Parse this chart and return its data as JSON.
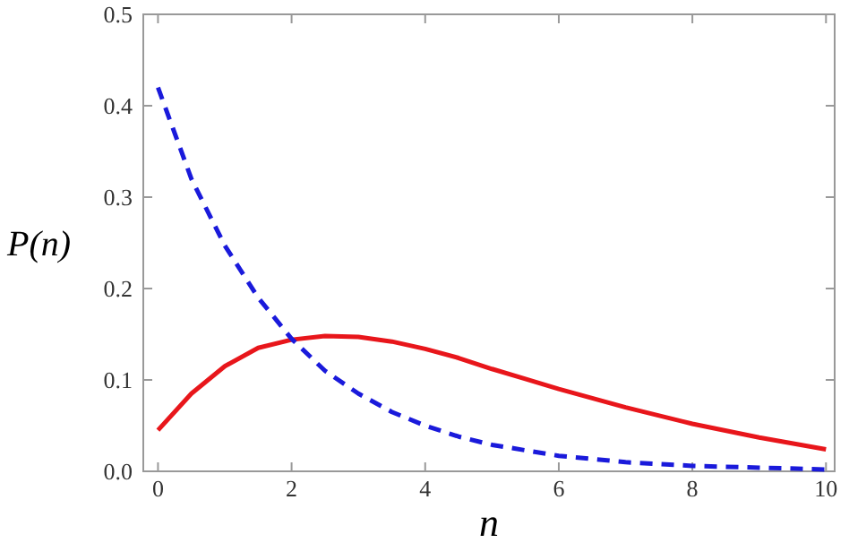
{
  "chart_data": {
    "type": "line",
    "xlabel": "n",
    "ylabel": "P(n)",
    "xlim": [
      -0.22,
      10.13
    ],
    "ylim": [
      0,
      0.5
    ],
    "xticks": [
      0,
      2,
      4,
      6,
      8,
      10
    ],
    "yticks": [
      {
        "value": 0,
        "label": "0.0"
      },
      0.1,
      0.2,
      0.3,
      0.4,
      0.5
    ],
    "grid": false,
    "marker": "none",
    "series": [
      {
        "color": "#e8161b",
        "line_style": "solid",
        "x": [
          0,
          0.5,
          1,
          1.5,
          2,
          2.5,
          3,
          3.5,
          4,
          4.5,
          5,
          5.5,
          6,
          7,
          8,
          9,
          10
        ],
        "values": [
          0.045,
          0.085,
          0.115,
          0.135,
          0.144,
          0.148,
          0.147,
          0.142,
          0.134,
          0.124,
          0.112,
          0.101,
          0.09,
          0.07,
          0.052,
          0.037,
          0.024
        ]
      },
      {
        "color": "#1a1adb",
        "line_style": "dashed",
        "x": [
          0,
          0.5,
          1,
          1.5,
          2,
          2.5,
          3,
          3.5,
          4,
          4.5,
          5,
          6,
          7,
          8,
          9,
          10
        ],
        "values": [
          0.42,
          0.32,
          0.247,
          0.19,
          0.145,
          0.11,
          0.085,
          0.065,
          0.05,
          0.038,
          0.029,
          0.017,
          0.01,
          0.006,
          0.004,
          0.002
        ]
      }
    ]
  }
}
